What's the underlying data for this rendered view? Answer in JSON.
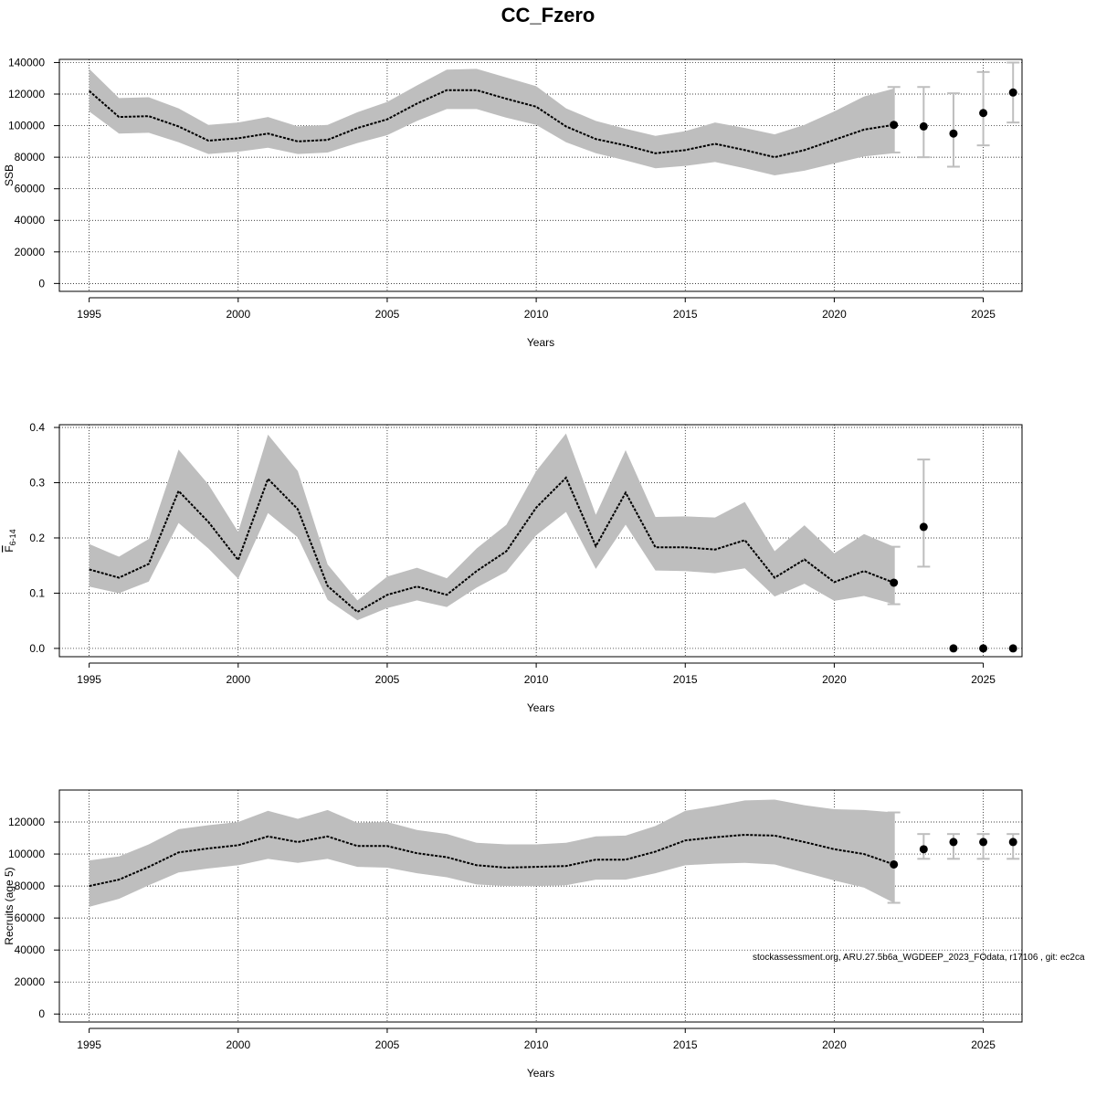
{
  "figure": {
    "title": "CC_Fzero",
    "footer": "stockassessment.org, ARU.27.5b6a_WGDEEP_2023_FOdata, r17106 , git: ec2ca"
  },
  "colors": {
    "band": "#bebebe",
    "line": "#000000",
    "errorbar": "#bebebe",
    "grid": "#000000"
  },
  "chart_data": [
    {
      "type": "line",
      "ylabel": "SSB",
      "ylabel_sub": "",
      "xlabel": "Years",
      "xlim": [
        1994,
        2026.3
      ],
      "ylim": [
        -5000,
        142000
      ],
      "xticks": [
        1995,
        2000,
        2005,
        2010,
        2015,
        2020,
        2025
      ],
      "yticks": [
        0,
        20000,
        40000,
        60000,
        80000,
        100000,
        120000,
        140000
      ],
      "history": {
        "x": [
          1995,
          1996,
          1997,
          1998,
          1999,
          2000,
          2001,
          2002,
          2003,
          2004,
          2005,
          2006,
          2007,
          2008,
          2009,
          2010,
          2011,
          2012,
          2013,
          2014,
          2015,
          2016,
          2017,
          2018,
          2019,
          2020,
          2021,
          2022
        ],
        "estimate": [
          122000,
          105500,
          106000,
          99500,
          90500,
          92000,
          95000,
          90000,
          91000,
          98500,
          104000,
          114000,
          122500,
          122500,
          117000,
          112000,
          99500,
          91500,
          87500,
          82500,
          84500,
          88500,
          84500,
          80000,
          84500,
          91000,
          97500,
          100500
        ],
        "lower": [
          109000,
          95000,
          95500,
          89500,
          82000,
          83500,
          86000,
          82000,
          83000,
          89000,
          94000,
          103000,
          110500,
          110500,
          105000,
          100500,
          89500,
          82500,
          78000,
          73000,
          74500,
          77000,
          73000,
          68500,
          71500,
          76000,
          80500,
          82500
        ],
        "upper": [
          136000,
          117500,
          118000,
          111000,
          100500,
          102000,
          105500,
          99500,
          100500,
          108500,
          115000,
          125500,
          135500,
          136000,
          130500,
          125000,
          111000,
          103000,
          98000,
          93500,
          96500,
          102000,
          98500,
          94500,
          100500,
          109000,
          118500,
          123500
        ]
      },
      "forecast": {
        "x": [
          2022,
          2023,
          2024,
          2025,
          2026
        ],
        "median": [
          100500,
          99500,
          95000,
          108000,
          121000
        ],
        "lower": [
          83000,
          80000,
          74000,
          87500,
          102000
        ],
        "upper": [
          124500,
          124500,
          120500,
          134000,
          140000
        ]
      }
    },
    {
      "type": "line",
      "ylabel": "F",
      "ylabel_sub": "6-14",
      "xlabel": "Years",
      "xlim": [
        1994,
        2026.3
      ],
      "ylim": [
        -0.015,
        0.405
      ],
      "xticks": [
        1995,
        2000,
        2005,
        2010,
        2015,
        2020,
        2025
      ],
      "yticks": [
        0.0,
        0.1,
        0.2,
        0.3,
        0.4
      ],
      "yticks_labels": [
        "0.0",
        "0.1",
        "0.2",
        "0.3",
        "0.4"
      ],
      "history": {
        "x": [
          1995,
          1996,
          1997,
          1998,
          1999,
          2000,
          2001,
          2002,
          2003,
          2004,
          2005,
          2006,
          2007,
          2008,
          2009,
          2010,
          2011,
          2012,
          2013,
          2014,
          2015,
          2016,
          2017,
          2018,
          2019,
          2020,
          2021,
          2022
        ],
        "estimate": [
          0.143,
          0.128,
          0.153,
          0.285,
          0.229,
          0.16,
          0.307,
          0.252,
          0.113,
          0.066,
          0.097,
          0.112,
          0.097,
          0.14,
          0.176,
          0.255,
          0.309,
          0.185,
          0.282,
          0.183,
          0.183,
          0.179,
          0.196,
          0.128,
          0.161,
          0.12,
          0.14,
          0.119
        ],
        "lower": [
          0.112,
          0.1,
          0.121,
          0.227,
          0.181,
          0.126,
          0.245,
          0.201,
          0.088,
          0.051,
          0.073,
          0.087,
          0.075,
          0.11,
          0.139,
          0.205,
          0.247,
          0.144,
          0.224,
          0.141,
          0.14,
          0.136,
          0.145,
          0.094,
          0.117,
          0.086,
          0.095,
          0.08
        ],
        "upper": [
          0.189,
          0.166,
          0.198,
          0.36,
          0.297,
          0.211,
          0.387,
          0.321,
          0.152,
          0.087,
          0.13,
          0.146,
          0.127,
          0.181,
          0.224,
          0.321,
          0.389,
          0.242,
          0.359,
          0.238,
          0.239,
          0.237,
          0.265,
          0.176,
          0.223,
          0.172,
          0.207,
          0.184
        ]
      },
      "forecast": {
        "x": [
          2022,
          2023,
          2024,
          2025,
          2026
        ],
        "median": [
          0.119,
          0.22,
          0.0,
          0.0,
          0.0
        ],
        "lower": [
          0.08,
          0.148,
          null,
          null,
          null
        ],
        "upper": [
          0.184,
          0.342,
          null,
          null,
          null
        ]
      }
    },
    {
      "type": "line",
      "ylabel": "Recruits (age 5)",
      "ylabel_sub": "",
      "xlabel": "Years",
      "xlim": [
        1994,
        2026.3
      ],
      "ylim": [
        -5000,
        140000
      ],
      "xticks": [
        1995,
        2000,
        2005,
        2010,
        2015,
        2020,
        2025
      ],
      "yticks": [
        0,
        20000,
        40000,
        60000,
        80000,
        100000,
        120000
      ],
      "history": {
        "x": [
          1995,
          1996,
          1997,
          1998,
          1999,
          2000,
          2001,
          2002,
          2003,
          2004,
          2005,
          2006,
          2007,
          2008,
          2009,
          2010,
          2011,
          2012,
          2013,
          2014,
          2015,
          2016,
          2017,
          2018,
          2019,
          2020,
          2021,
          2022
        ],
        "estimate": [
          80000,
          84000,
          92000,
          101000,
          103500,
          105500,
          111000,
          107500,
          111000,
          105000,
          105000,
          100500,
          98000,
          93000,
          91500,
          92000,
          92500,
          96500,
          96500,
          101500,
          108500,
          110500,
          112000,
          111500,
          107500,
          103000,
          100000,
          93500
        ],
        "lower": [
          67000,
          72000,
          80500,
          88500,
          91000,
          93000,
          97000,
          94500,
          97000,
          92000,
          91500,
          88000,
          85500,
          81000,
          80000,
          80000,
          80500,
          84000,
          84000,
          88000,
          93000,
          94000,
          94500,
          93500,
          88500,
          83500,
          79000,
          69500
        ],
        "upper": [
          96000,
          98500,
          106000,
          115500,
          118000,
          120000,
          127000,
          122000,
          127500,
          119500,
          120000,
          115000,
          112500,
          107000,
          106000,
          106000,
          107000,
          111000,
          111500,
          117500,
          127000,
          130000,
          133500,
          134000,
          130500,
          128000,
          127500,
          126000
        ]
      },
      "forecast": {
        "x": [
          2022,
          2023,
          2024,
          2025,
          2026
        ],
        "median": [
          93500,
          103000,
          107500,
          107500,
          107500
        ],
        "lower": [
          69500,
          97000,
          97000,
          97000,
          97000
        ],
        "upper": [
          126000,
          112500,
          112500,
          112500,
          112500
        ]
      }
    }
  ]
}
